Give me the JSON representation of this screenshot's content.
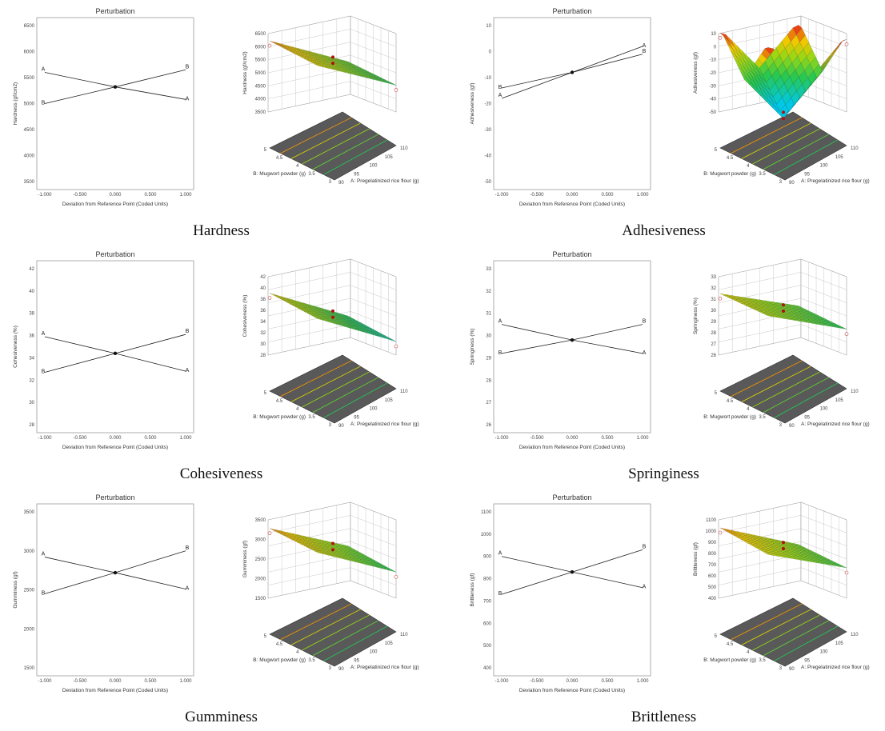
{
  "colors": {
    "floor": "#595959",
    "line": "#222222",
    "frame": "#9a9a9a"
  },
  "labels3d": {
    "x_axis": "A: Pregelatinized rice flour (g)",
    "y_axis": "B: Mugwort powder (g)",
    "x_ticks": [
      "90",
      "95",
      "100",
      "105",
      "110"
    ],
    "y_ticks": [
      "3",
      "3.5",
      "4",
      "4.5",
      "5"
    ]
  },
  "chart_data": [
    {
      "name": "hardness",
      "type": "line",
      "caption": "Hardness",
      "perturbation": {
        "title": "Perturbation",
        "xlabel": "Deviation from Reference Point (Coded Units)",
        "ylabel": "Hardness (gf/cm2)",
        "xticks": [
          "-1.000",
          "-0.500",
          "0.000",
          "0.500",
          "1.000"
        ],
        "yticks": [
          "3500",
          "4000",
          "4500",
          "5000",
          "5500",
          "6000",
          "6500"
        ],
        "ylim": [
          3500,
          6500
        ],
        "center": 5320,
        "A": [
          5600,
          5080
        ],
        "B": [
          5000,
          5650
        ]
      },
      "surface": {
        "zlabel": "Hardness (gf/cm2)",
        "zticks": [
          "3500",
          "4000",
          "4500",
          "5000",
          "5500",
          "6000",
          "6500"
        ],
        "zlim": [
          3500,
          6500
        ],
        "type": "plane",
        "corners": [
          5700,
          4650,
          6100,
          5000
        ]
      }
    },
    {
      "name": "adhesiveness",
      "type": "line",
      "caption": "Adhesiveness",
      "perturbation": {
        "title": "Perturbation",
        "xlabel": "Deviation from Reference Point (Coded Units)",
        "ylabel": "Adhesiveness (gf)",
        "xticks": [
          "-1.000",
          "-0.500",
          "0.000",
          "0.500",
          "1.000"
        ],
        "yticks": [
          "-50",
          "-40",
          "-30",
          "-20",
          "-10",
          "0",
          "10"
        ],
        "ylim": [
          -50,
          10
        ],
        "center": -8,
        "A": [
          -18,
          2
        ],
        "B": [
          -14,
          -1
        ]
      },
      "surface": {
        "zlabel": "Adhesiveness (gf)",
        "zticks": [
          "-50",
          "-40",
          "-30",
          "-20",
          "-10",
          "0",
          "10"
        ],
        "zlim": [
          -50,
          10
        ],
        "type": "saddle",
        "corners": [
          -3,
          2,
          -3,
          8
        ]
      }
    },
    {
      "name": "cohesiveness",
      "type": "line",
      "caption": "Cohesiveness",
      "perturbation": {
        "title": "Perturbation",
        "xlabel": "Deviation from Reference Point (Coded Units)",
        "ylabel": "Cohesiveness (%)",
        "xticks": [
          "-1.000",
          "-0.500",
          "0.000",
          "0.500",
          "1.000"
        ],
        "yticks": [
          "28",
          "30",
          "32",
          "34",
          "36",
          "38",
          "40",
          "42"
        ],
        "ylim": [
          28,
          42
        ],
        "center": 34.4,
        "A": [
          35.9,
          32.8
        ],
        "B": [
          32.7,
          36.1
        ]
      },
      "surface": {
        "zlabel": "Cohesiveness (%)",
        "zticks": [
          "28",
          "30",
          "32",
          "34",
          "36",
          "38",
          "40",
          "42"
        ],
        "zlim": [
          28,
          42
        ],
        "type": "plane",
        "corners": [
          36.5,
          31,
          38.5,
          33
        ]
      }
    },
    {
      "name": "springiness",
      "type": "line",
      "caption": "Springiness",
      "perturbation": {
        "title": "Perturbation",
        "xlabel": "Deviation from Reference Point (Coded Units)",
        "ylabel": "Springiness (%)",
        "xticks": [
          "-1.000",
          "-0.500",
          "0.000",
          "0.500",
          "1.000"
        ],
        "yticks": [
          "26",
          "27",
          "28",
          "29",
          "30",
          "31",
          "32",
          "33"
        ],
        "ylim": [
          26,
          33
        ],
        "center": 29.8,
        "A": [
          30.5,
          29.2
        ],
        "B": [
          29.2,
          30.5
        ]
      },
      "surface": {
        "zlabel": "Springiness (%)",
        "zticks": [
          "26",
          "27",
          "28",
          "29",
          "30",
          "31",
          "32",
          "33"
        ],
        "zlim": [
          26,
          33
        ],
        "type": "plane",
        "corners": [
          30.5,
          28.6,
          31.2,
          29.4
        ]
      }
    },
    {
      "name": "gumminess",
      "type": "line",
      "caption": "Gumminess",
      "perturbation": {
        "title": "Perturbation",
        "xlabel": "Deviation from Reference Point (Coded Units)",
        "ylabel": "Gumminess (gf)",
        "xticks": [
          "-1.000",
          "-0.500",
          "0.000",
          "0.500",
          "1.000"
        ],
        "yticks": [
          "1500",
          "2000",
          "2500",
          "3000",
          "3500"
        ],
        "ylim": [
          1500,
          3500
        ],
        "center": 2720,
        "A": [
          2920,
          2510
        ],
        "B": [
          2450,
          3000
        ]
      },
      "surface": {
        "zlabel": "Gumminess (gf)",
        "zticks": [
          "1500",
          "2000",
          "2500",
          "3000",
          "3500"
        ],
        "zlim": [
          1500,
          3500
        ],
        "type": "plane",
        "corners": [
          2950,
          2250,
          3200,
          2550
        ]
      }
    },
    {
      "name": "brittleness",
      "type": "line",
      "caption": "Brittleness",
      "perturbation": {
        "title": "Perturbation",
        "xlabel": "Deviation from Reference Point (Coded Units)",
        "ylabel": "Brittleness (gf)",
        "xticks": [
          "-1.000",
          "-0.500",
          "0.000",
          "0.500",
          "1.000"
        ],
        "yticks": [
          "400",
          "500",
          "600",
          "700",
          "800",
          "900",
          "1000",
          "1100"
        ],
        "ylim": [
          400,
          1100
        ],
        "center": 830,
        "A": [
          900,
          760
        ],
        "B": [
          730,
          930
        ]
      },
      "surface": {
        "zlabel": "Brittleness (gf)",
        "zticks": [
          "400",
          "500",
          "600",
          "700",
          "800",
          "900",
          "1000",
          "1100"
        ],
        "zlim": [
          400,
          1100
        ],
        "type": "plane",
        "corners": [
          890,
          700,
          1000,
          780
        ]
      }
    }
  ]
}
